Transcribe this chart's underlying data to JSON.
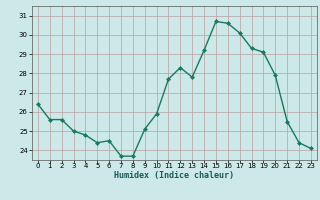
{
  "x": [
    0,
    1,
    2,
    3,
    4,
    5,
    6,
    7,
    8,
    9,
    10,
    11,
    12,
    13,
    14,
    15,
    16,
    17,
    18,
    19,
    20,
    21,
    22,
    23
  ],
  "y": [
    26.4,
    25.6,
    25.6,
    25.0,
    24.8,
    24.4,
    24.5,
    23.7,
    23.7,
    25.1,
    25.9,
    27.7,
    28.3,
    27.8,
    29.2,
    30.7,
    30.6,
    30.1,
    29.3,
    29.1,
    27.9,
    25.5,
    24.4,
    24.1
  ],
  "line_color": "#1a7a5e",
  "marker": "D",
  "marker_size": 2.0,
  "bg_color": "#cce8e8",
  "grid_color": "#b8a0a0",
  "xlabel": "Humidex (Indice chaleur)",
  "ylim": [
    23.5,
    31.5
  ],
  "yticks": [
    24,
    25,
    26,
    27,
    28,
    29,
    30,
    31
  ],
  "xticks": [
    0,
    1,
    2,
    3,
    4,
    5,
    6,
    7,
    8,
    9,
    10,
    11,
    12,
    13,
    14,
    15,
    16,
    17,
    18,
    19,
    20,
    21,
    22,
    23
  ],
  "xlim": [
    -0.5,
    23.5
  ],
  "tick_fontsize": 5.0,
  "xlabel_fontsize": 6.0,
  "linewidth": 1.0
}
